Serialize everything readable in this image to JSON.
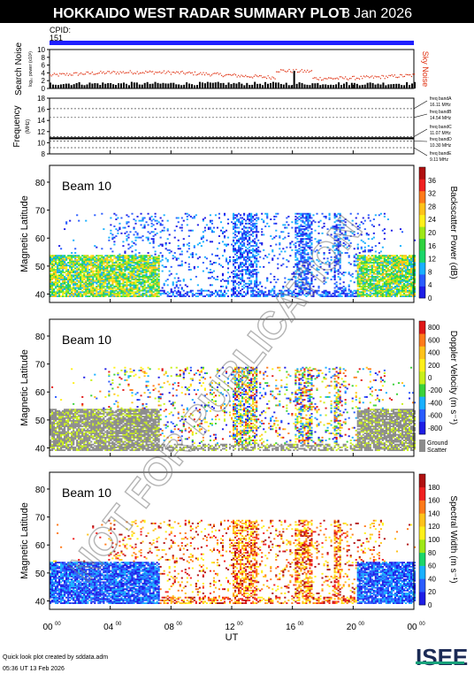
{
  "header": {
    "title": "HOKKAIDO WEST RADAR SUMMARY PLOT",
    "date": "8 Jan 2026",
    "cpid_label": "CPID:",
    "cpid_value": "151",
    "bar_color": "#1f1fff"
  },
  "watermark": "NOT FOR PUBLICATION",
  "footer": {
    "credit": "Quick look plot created by sddata.adm",
    "created": "05:36 UT 13 Feb 2026",
    "logo_text": "ISEE",
    "xlabel": "UT",
    "xticks": [
      "00",
      "04",
      "08",
      "12",
      "16",
      "20",
      "00"
    ],
    "xtick_sup": "00"
  },
  "chart_data": [
    {
      "type": "line",
      "name": "search-noise",
      "ylabel": "Search Noise",
      "ylabel2": "log₁₀ power (x10³)",
      "ylim": [
        0,
        10
      ],
      "yticks": [
        "0",
        "2",
        "4",
        "6",
        "8",
        "10"
      ],
      "legend": "Sky Noise",
      "sky_noise_level": 3.5,
      "search_noise_level": 0.8,
      "x_range_hours": [
        0,
        24
      ]
    },
    {
      "type": "line",
      "name": "frequency",
      "ylabel": "Frequency",
      "ylabel2": "(MHz)",
      "ylim": [
        8,
        18
      ],
      "yticks": [
        "8",
        "10",
        "12",
        "14",
        "16",
        "18"
      ],
      "bands": [
        {
          "label": "freq bandA",
          "value": "16.11 MHz",
          "freq": 16.11
        },
        {
          "label": "freq bandB",
          "value": "14.54 MHz",
          "freq": 14.54
        },
        {
          "label": "freq bandC",
          "value": "11.07 MHz",
          "freq": 11.07
        },
        {
          "label": "freq bandD",
          "value": "10.30 MHz",
          "freq": 10.3
        },
        {
          "label": "freq bandE",
          "value": "9.11 MHz",
          "freq": 9.11
        }
      ],
      "active_freq": 10.8
    },
    {
      "type": "heatmap",
      "name": "backscatter-power",
      "beam_label": "Beam 10",
      "ylabel": "Magnetic Latitude",
      "ylim": [
        37,
        86
      ],
      "yticks": [
        "40",
        "50",
        "60",
        "70",
        "80"
      ],
      "colorbar_label": "Backscatter Power (dB)",
      "colorbar_ticks": [
        "0",
        "4",
        "8",
        "12",
        "16",
        "20",
        "24",
        "28",
        "32",
        "36"
      ],
      "colorbar_colors": [
        "#1e1ee6",
        "#2a5cff",
        "#19b0ff",
        "#1bd66a",
        "#2fd23f",
        "#9ee817",
        "#fff01a",
        "#ffc21a",
        "#ff7a1a",
        "#f02020",
        "#b01010"
      ]
    },
    {
      "type": "heatmap",
      "name": "doppler-velocity",
      "beam_label": "Beam 10",
      "ylabel": "Magnetic Latitude",
      "ylim": [
        37,
        86
      ],
      "yticks": [
        "40",
        "50",
        "60",
        "70",
        "80"
      ],
      "colorbar_label": "Doppler Velocity (m s⁻¹)",
      "colorbar_ticks": [
        "-800",
        "-600",
        "-400",
        "-200",
        "0",
        "200",
        "400",
        "600",
        "800"
      ],
      "colorbar_colors": [
        "#e01818",
        "#ff7a1a",
        "#ffc21a",
        "#fff01a",
        "#c8f01a",
        "#3ad23a",
        "#19b0ff",
        "#2a5cff",
        "#1e1ee6"
      ],
      "ground_scatter_label": "Ground Scatter",
      "ground_scatter_color": "#8c8c8c"
    },
    {
      "type": "heatmap",
      "name": "spectral-width",
      "beam_label": "Beam 10",
      "ylabel": "Magnetic Latitude",
      "ylim": [
        37,
        86
      ],
      "yticks": [
        "40",
        "50",
        "60",
        "70",
        "80"
      ],
      "colorbar_label": "Spectral Width (m s⁻¹)",
      "colorbar_ticks": [
        "0",
        "20",
        "40",
        "60",
        "80",
        "100",
        "120",
        "140",
        "160",
        "180"
      ],
      "colorbar_colors": [
        "#1e1ee6",
        "#2a5cff",
        "#19b0ff",
        "#1bd66a",
        "#9ee817",
        "#fff01a",
        "#ffc21a",
        "#ff7a1a",
        "#f02020",
        "#b01010"
      ]
    }
  ]
}
